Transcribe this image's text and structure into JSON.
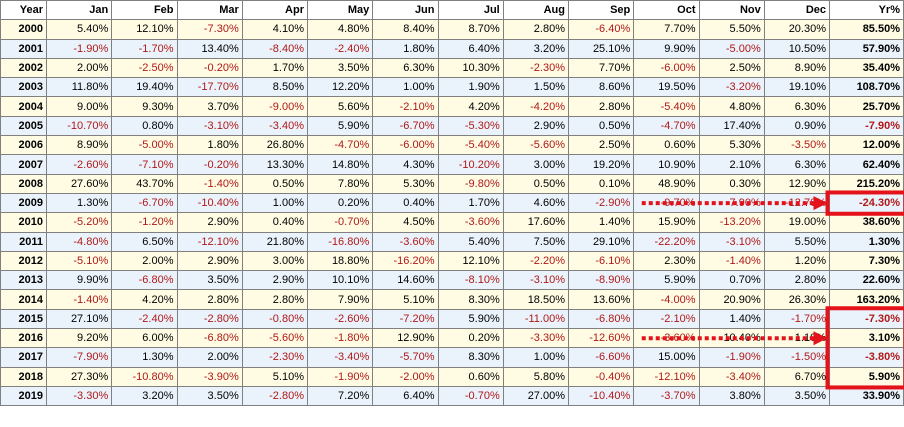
{
  "headers": [
    "Year",
    "Jan",
    "Feb",
    "Mar",
    "Apr",
    "May",
    "Jun",
    "Jul",
    "Aug",
    "Sep",
    "Oct",
    "Nov",
    "Dec",
    "Yr%"
  ],
  "rows": [
    [
      "2000",
      "5.40%",
      "12.10%",
      "-7.30%",
      "4.10%",
      "4.80%",
      "8.40%",
      "8.70%",
      "2.80%",
      "-6.40%",
      "7.70%",
      "5.50%",
      "20.30%",
      "85.50%"
    ],
    [
      "2001",
      "-1.90%",
      "-1.70%",
      "13.40%",
      "-8.40%",
      "-2.40%",
      "1.80%",
      "6.40%",
      "3.20%",
      "25.10%",
      "9.90%",
      "-5.00%",
      "10.50%",
      "57.90%"
    ],
    [
      "2002",
      "2.00%",
      "-2.50%",
      "-0.20%",
      "1.70%",
      "3.50%",
      "6.30%",
      "10.30%",
      "-2.30%",
      "7.70%",
      "-6.00%",
      "2.50%",
      "8.90%",
      "35.40%"
    ],
    [
      "2003",
      "11.80%",
      "19.40%",
      "-17.70%",
      "8.50%",
      "12.20%",
      "1.00%",
      "1.90%",
      "1.50%",
      "8.60%",
      "19.50%",
      "-3.20%",
      "19.10%",
      "108.70%"
    ],
    [
      "2004",
      "9.00%",
      "9.30%",
      "3.70%",
      "-9.00%",
      "5.60%",
      "-2.10%",
      "4.20%",
      "-4.20%",
      "2.80%",
      "-5.40%",
      "4.80%",
      "6.30%",
      "25.70%"
    ],
    [
      "2005",
      "-10.70%",
      "0.80%",
      "-3.10%",
      "-3.40%",
      "5.90%",
      "-6.70%",
      "-5.30%",
      "2.90%",
      "0.50%",
      "-4.70%",
      "17.40%",
      "0.90%",
      "-7.90%"
    ],
    [
      "2006",
      "8.90%",
      "-5.00%",
      "1.80%",
      "26.80%",
      "-4.70%",
      "-6.00%",
      "-5.40%",
      "-5.60%",
      "2.50%",
      "0.60%",
      "5.30%",
      "-3.50%",
      "12.00%"
    ],
    [
      "2007",
      "-2.60%",
      "-7.10%",
      "-0.20%",
      "13.30%",
      "14.80%",
      "4.30%",
      "-10.20%",
      "3.00%",
      "19.20%",
      "10.90%",
      "2.10%",
      "6.30%",
      "62.40%"
    ],
    [
      "2008",
      "27.60%",
      "43.70%",
      "-1.40%",
      "0.50%",
      "7.80%",
      "5.30%",
      "-9.80%",
      "0.50%",
      "0.10%",
      "48.90%",
      "0.30%",
      "12.90%",
      "215.20%"
    ],
    [
      "2009",
      "1.30%",
      "-6.70%",
      "-10.40%",
      "1.00%",
      "0.20%",
      "0.40%",
      "1.70%",
      "4.60%",
      "-2.90%",
      "-9.70%",
      "-7.90%",
      "-12.70%",
      "-24.30%"
    ],
    [
      "2010",
      "-5.20%",
      "-1.20%",
      "2.90%",
      "0.40%",
      "-0.70%",
      "4.50%",
      "-3.60%",
      "17.60%",
      "1.40%",
      "15.90%",
      "-13.20%",
      "19.00%",
      "38.60%"
    ],
    [
      "2011",
      "-4.80%",
      "6.50%",
      "-12.10%",
      "21.80%",
      "-16.80%",
      "-3.60%",
      "5.40%",
      "7.50%",
      "29.10%",
      "-22.20%",
      "-3.10%",
      "5.50%",
      "1.30%"
    ],
    [
      "2012",
      "-5.10%",
      "2.00%",
      "2.90%",
      "3.00%",
      "18.80%",
      "-16.20%",
      "12.10%",
      "-2.20%",
      "-6.10%",
      "2.30%",
      "-1.40%",
      "1.20%",
      "7.30%"
    ],
    [
      "2013",
      "9.90%",
      "-6.80%",
      "3.50%",
      "2.90%",
      "10.10%",
      "14.60%",
      "-8.10%",
      "-3.10%",
      "-8.90%",
      "5.90%",
      "0.70%",
      "2.80%",
      "22.60%"
    ],
    [
      "2014",
      "-1.40%",
      "4.20%",
      "2.80%",
      "2.80%",
      "7.90%",
      "5.10%",
      "8.30%",
      "18.50%",
      "13.60%",
      "-4.00%",
      "20.90%",
      "26.30%",
      "163.20%"
    ],
    [
      "2015",
      "27.10%",
      "-2.40%",
      "-2.80%",
      "-0.80%",
      "-2.60%",
      "-7.20%",
      "5.90%",
      "-11.00%",
      "-6.80%",
      "-2.10%",
      "1.40%",
      "-1.70%",
      "-7.30%"
    ],
    [
      "2016",
      "9.20%",
      "6.00%",
      "-6.80%",
      "-5.60%",
      "-1.80%",
      "12.90%",
      "0.20%",
      "-3.30%",
      "-12.60%",
      "-3.60%",
      "10.40%",
      "1.10%",
      "3.10%"
    ],
    [
      "2017",
      "-7.90%",
      "1.30%",
      "2.00%",
      "-2.30%",
      "-3.40%",
      "-5.70%",
      "8.30%",
      "1.00%",
      "-6.60%",
      "15.00%",
      "-1.90%",
      "-1.50%",
      "-3.80%"
    ],
    [
      "2018",
      "27.30%",
      "-10.80%",
      "-3.90%",
      "5.10%",
      "-1.90%",
      "-2.00%",
      "0.60%",
      "5.80%",
      "-0.40%",
      "-12.10%",
      "-3.40%",
      "6.70%",
      "5.90%"
    ],
    [
      "2019",
      "-3.30%",
      "3.20%",
      "3.50%",
      "-2.80%",
      "7.20%",
      "6.40%",
      "-0.70%",
      "27.00%",
      "-10.40%",
      "-3.70%",
      "3.80%",
      "3.50%",
      "33.90%"
    ]
  ],
  "colors": {
    "odd_row_bg": "#fffce3",
    "even_row_bg": "#eaf3fb",
    "negative_text": "#b01818",
    "annotation": "#e4121b",
    "grid_border": "#808080"
  },
  "annotations": {
    "dotted_arrows_toward_year_column": [
      "2009",
      "2016"
    ],
    "highlight_boxes_year_pct": [
      [
        "2009"
      ],
      [
        "2015",
        "2016",
        "2017",
        "2018"
      ]
    ]
  }
}
